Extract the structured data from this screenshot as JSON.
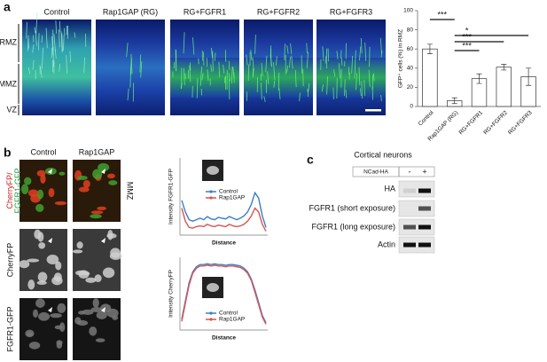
{
  "panel_a": {
    "label": "a",
    "image_labels": [
      "Control",
      "Rap1GAP (RG)",
      "RG+FGFR1",
      "RG+FGFR2",
      "RG+FGFR3"
    ],
    "zones": [
      "RMZ",
      "MMZ",
      "VZ"
    ]
  },
  "panel_b": {
    "label": "b",
    "columns": [
      "Control",
      "Rap1GAP"
    ],
    "merge_label": {
      "red": "CherryFP/",
      "green": "FGFR1-GFP"
    },
    "row_labels": [
      "CherryFP",
      "FGFR1-GFP"
    ],
    "zone": "MMZ"
  },
  "panel_c": {
    "label": "c",
    "title": "Cortical neurons",
    "construct": "NCad-HA",
    "lanes": [
      "-",
      "+"
    ],
    "rows": [
      "HA",
      "FGFR1 (short exposure)",
      "FGFR1 (long exposure)",
      "Actin"
    ]
  },
  "chart_data": [
    {
      "type": "bar",
      "categories": [
        "Control",
        "Rap1GAP (RG)",
        "RG+FGFR1",
        "RG+FGFR2",
        "RG+FGFR3"
      ],
      "values": [
        60,
        6,
        29,
        41,
        31
      ],
      "errors": [
        5,
        3,
        5,
        3,
        9
      ],
      "color": "#ffffff",
      "ylabel": "GFP⁺ cells (%) in RMZ",
      "ylim": [
        0,
        100
      ],
      "yticks": [
        0,
        20,
        40,
        60,
        80,
        100
      ],
      "annotations": [
        "***",
        "*",
        "***",
        "***"
      ]
    },
    {
      "type": "line",
      "xlabel": "Distance",
      "ylabel": "Intensity FGFR1-GFP",
      "ylim": [
        0,
        100
      ],
      "series": [
        {
          "name": "Control",
          "color": "#3a7dc9",
          "values": [
            45,
            30,
            20,
            18,
            20,
            22,
            20,
            24,
            21,
            20,
            23,
            22,
            21,
            24,
            22,
            20,
            22,
            25,
            30,
            40,
            55,
            48,
            25,
            10
          ]
        },
        {
          "name": "Rap1GAP",
          "color": "#d9534f",
          "values": [
            35,
            18,
            10,
            9,
            11,
            12,
            11,
            14,
            12,
            11,
            13,
            12,
            11,
            14,
            12,
            11,
            12,
            14,
            18,
            25,
            35,
            30,
            14,
            5
          ]
        }
      ]
    },
    {
      "type": "line",
      "xlabel": "Distance",
      "ylabel": "Intensity CherryFP",
      "ylim": [
        0,
        100
      ],
      "series": [
        {
          "name": "Control",
          "color": "#3a7dc9",
          "values": [
            15,
            40,
            65,
            80,
            87,
            90,
            90,
            91,
            90,
            91,
            90,
            90,
            89,
            90,
            90,
            89,
            88,
            85,
            80,
            70,
            55,
            38,
            20,
            10
          ]
        },
        {
          "name": "Rap1GAP",
          "color": "#d9534f",
          "values": [
            12,
            37,
            62,
            78,
            85,
            88,
            88,
            89,
            88,
            89,
            88,
            88,
            87,
            88,
            88,
            87,
            86,
            83,
            78,
            68,
            52,
            35,
            18,
            8
          ]
        }
      ]
    }
  ]
}
